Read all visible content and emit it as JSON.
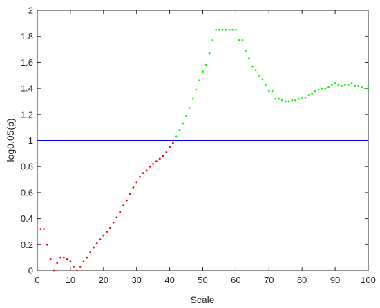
{
  "chart_data": {
    "type": "scatter",
    "title": "",
    "xlabel": "Scale",
    "ylabel": "log0.05(p)",
    "xlim": [
      0,
      100
    ],
    "ylim": [
      0,
      2
    ],
    "xticks": [
      0,
      10,
      20,
      30,
      40,
      50,
      60,
      70,
      80,
      90,
      100
    ],
    "yticks": [
      0,
      0.2,
      0.4,
      0.6,
      0.8,
      1,
      1.2,
      1.4,
      1.6,
      1.8,
      2
    ],
    "xtick_labels": [
      "0",
      "10",
      "20",
      "30",
      "40",
      "50",
      "60",
      "70",
      "80",
      "90",
      "100"
    ],
    "ytick_labels": [
      "0",
      "0.2",
      "0.4",
      "0.6",
      "0.8",
      "1",
      "1.2",
      "1.4",
      "1.6",
      "1.8",
      "2"
    ],
    "grid": false,
    "colors": {
      "below": "#ff0000",
      "above": "#00ff00",
      "threshold": "#0000ff",
      "axis": "#262626"
    },
    "threshold": {
      "y": 1
    },
    "points": [
      [
        1,
        0.32
      ],
      [
        2,
        0.32
      ],
      [
        3,
        0.2
      ],
      [
        4,
        0.09
      ],
      [
        5,
        0.0
      ],
      [
        6,
        0.06
      ],
      [
        7,
        0.1
      ],
      [
        8,
        0.1
      ],
      [
        9,
        0.09
      ],
      [
        10,
        0.07
      ],
      [
        11,
        0.03
      ],
      [
        12,
        0.0
      ],
      [
        13,
        0.03
      ],
      [
        14,
        0.07
      ],
      [
        15,
        0.1
      ],
      [
        16,
        0.14
      ],
      [
        17,
        0.18
      ],
      [
        18,
        0.21
      ],
      [
        19,
        0.24
      ],
      [
        20,
        0.27
      ],
      [
        21,
        0.3
      ],
      [
        22,
        0.33
      ],
      [
        23,
        0.37
      ],
      [
        24,
        0.41
      ],
      [
        25,
        0.45
      ],
      [
        26,
        0.5
      ],
      [
        27,
        0.54
      ],
      [
        28,
        0.59
      ],
      [
        29,
        0.64
      ],
      [
        30,
        0.68
      ],
      [
        31,
        0.72
      ],
      [
        32,
        0.75
      ],
      [
        33,
        0.77
      ],
      [
        34,
        0.8
      ],
      [
        35,
        0.82
      ],
      [
        36,
        0.84
      ],
      [
        37,
        0.86
      ],
      [
        38,
        0.88
      ],
      [
        39,
        0.91
      ],
      [
        40,
        0.95
      ],
      [
        41,
        0.98
      ],
      [
        42,
        1.03
      ],
      [
        43,
        1.08
      ],
      [
        44,
        1.13
      ],
      [
        45,
        1.19
      ],
      [
        46,
        1.25
      ],
      [
        47,
        1.32
      ],
      [
        48,
        1.39
      ],
      [
        49,
        1.46
      ],
      [
        50,
        1.53
      ],
      [
        51,
        1.58
      ],
      [
        52,
        1.67
      ],
      [
        53,
        1.77
      ],
      [
        54,
        1.85
      ],
      [
        55,
        1.85
      ],
      [
        56,
        1.85
      ],
      [
        57,
        1.85
      ],
      [
        58,
        1.85
      ],
      [
        59,
        1.85
      ],
      [
        60,
        1.85
      ],
      [
        61,
        1.77
      ],
      [
        62,
        1.77
      ],
      [
        63,
        1.69
      ],
      [
        64,
        1.63
      ],
      [
        65,
        1.57
      ],
      [
        66,
        1.54
      ],
      [
        67,
        1.5
      ],
      [
        68,
        1.47
      ],
      [
        69,
        1.43
      ],
      [
        70,
        1.38
      ],
      [
        71,
        1.38
      ],
      [
        72,
        1.32
      ],
      [
        73,
        1.32
      ],
      [
        74,
        1.31
      ],
      [
        75,
        1.3
      ],
      [
        76,
        1.3
      ],
      [
        77,
        1.31
      ],
      [
        78,
        1.31
      ],
      [
        79,
        1.32
      ],
      [
        80,
        1.33
      ],
      [
        81,
        1.33
      ],
      [
        82,
        1.35
      ],
      [
        83,
        1.36
      ],
      [
        84,
        1.38
      ],
      [
        85,
        1.39
      ],
      [
        86,
        1.4
      ],
      [
        87,
        1.4
      ],
      [
        88,
        1.41
      ],
      [
        89,
        1.43
      ],
      [
        90,
        1.44
      ],
      [
        91,
        1.43
      ],
      [
        92,
        1.42
      ],
      [
        93,
        1.43
      ],
      [
        94,
        1.43
      ],
      [
        95,
        1.44
      ],
      [
        96,
        1.42
      ],
      [
        97,
        1.42
      ],
      [
        98,
        1.41
      ],
      [
        99,
        1.4
      ],
      [
        100,
        1.42
      ]
    ]
  }
}
